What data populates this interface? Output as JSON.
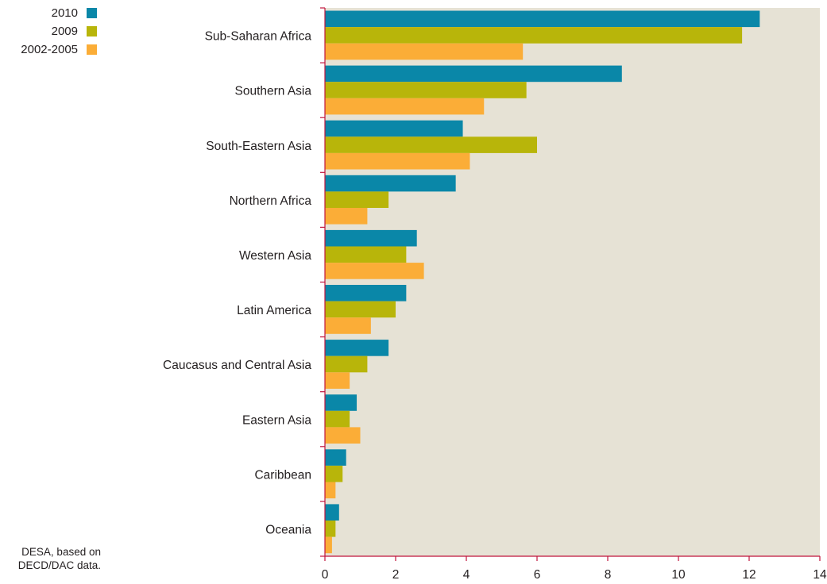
{
  "chart_data": {
    "type": "bar",
    "orientation": "horizontal",
    "categories": [
      "Sub-Saharan Africa",
      "Southern Asia",
      "South-Eastern Asia",
      "Northern Africa",
      "Western Asia",
      "Latin America",
      "Caucasus and Central Asia",
      "Eastern Asia",
      "Caribbean",
      "Oceania"
    ],
    "series": [
      {
        "name": "2010",
        "color": "#0a87a8",
        "values": [
          12.3,
          8.4,
          3.9,
          3.7,
          2.6,
          2.3,
          1.8,
          0.9,
          0.6,
          0.4
        ]
      },
      {
        "name": "2009",
        "color": "#b8b50a",
        "values": [
          11.8,
          5.7,
          6.0,
          1.8,
          2.3,
          2.0,
          1.2,
          0.7,
          0.5,
          0.3
        ]
      },
      {
        "name": "2002-2005",
        "color": "#fbad37",
        "values": [
          5.6,
          4.5,
          4.1,
          1.2,
          2.8,
          1.3,
          0.7,
          1.0,
          0.3,
          0.2
        ]
      }
    ],
    "xticks": [
      0,
      2,
      4,
      6,
      8,
      10,
      12,
      14
    ],
    "xlim": [
      0,
      14
    ],
    "plot_background": "#e6e2d5",
    "axis_color": "#c0143c",
    "legend_position": "top-left",
    "grid": false
  },
  "source_note": [
    "DESA, based on",
    "DECD/DAC data."
  ]
}
